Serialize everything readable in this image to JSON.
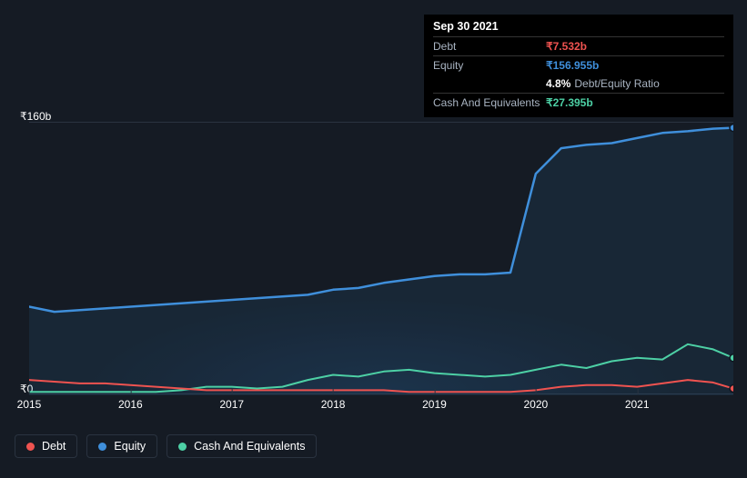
{
  "chart": {
    "type": "area-line",
    "background_color": "#151b24",
    "grid_color": "#2a3340",
    "ylim": [
      0,
      160
    ],
    "y_unit_prefix": "₹",
    "y_unit_suffix": "b",
    "y_labels": {
      "top": "₹160b",
      "bottom": "₹0"
    },
    "x_years": [
      "2015",
      "2016",
      "2017",
      "2018",
      "2019",
      "2020",
      "2021"
    ],
    "x_range": [
      2015,
      2021.95
    ],
    "series": {
      "debt": {
        "label": "Debt",
        "color": "#ef5350",
        "fill_opacity": 0.0,
        "line_width": 2,
        "points": [
          [
            2015.0,
            9
          ],
          [
            2015.25,
            8
          ],
          [
            2015.5,
            7
          ],
          [
            2015.75,
            7
          ],
          [
            2016.0,
            6
          ],
          [
            2016.25,
            5
          ],
          [
            2016.5,
            4
          ],
          [
            2016.75,
            3
          ],
          [
            2017.0,
            3
          ],
          [
            2017.25,
            3
          ],
          [
            2017.5,
            3
          ],
          [
            2017.75,
            3
          ],
          [
            2018.0,
            3
          ],
          [
            2018.25,
            3
          ],
          [
            2018.5,
            3
          ],
          [
            2018.75,
            2
          ],
          [
            2019.0,
            2
          ],
          [
            2019.25,
            2
          ],
          [
            2019.5,
            2
          ],
          [
            2019.75,
            2
          ],
          [
            2020.0,
            3
          ],
          [
            2020.25,
            5
          ],
          [
            2020.5,
            6
          ],
          [
            2020.75,
            6
          ],
          [
            2021.0,
            5
          ],
          [
            2021.25,
            7
          ],
          [
            2021.5,
            9
          ],
          [
            2021.75,
            7.5
          ],
          [
            2021.95,
            4
          ]
        ]
      },
      "equity": {
        "label": "Equity",
        "color": "#3f8fdb",
        "fill_opacity": 0.1,
        "line_width": 2.5,
        "points": [
          [
            2015.0,
            52
          ],
          [
            2015.25,
            49
          ],
          [
            2015.5,
            50
          ],
          [
            2015.75,
            51
          ],
          [
            2016.0,
            52
          ],
          [
            2016.25,
            53
          ],
          [
            2016.5,
            54
          ],
          [
            2016.75,
            55
          ],
          [
            2017.0,
            56
          ],
          [
            2017.25,
            57
          ],
          [
            2017.5,
            58
          ],
          [
            2017.75,
            59
          ],
          [
            2018.0,
            62
          ],
          [
            2018.25,
            63
          ],
          [
            2018.5,
            66
          ],
          [
            2018.75,
            68
          ],
          [
            2019.0,
            70
          ],
          [
            2019.25,
            71
          ],
          [
            2019.5,
            71
          ],
          [
            2019.75,
            72
          ],
          [
            2020.0,
            130
          ],
          [
            2020.25,
            145
          ],
          [
            2020.5,
            147
          ],
          [
            2020.75,
            148
          ],
          [
            2021.0,
            151
          ],
          [
            2021.25,
            154
          ],
          [
            2021.5,
            155
          ],
          [
            2021.75,
            156.5
          ],
          [
            2021.95,
            157
          ]
        ]
      },
      "cash": {
        "label": "Cash And Equivalents",
        "color": "#4dd0a5",
        "fill_opacity": 0.0,
        "line_width": 2,
        "points": [
          [
            2015.0,
            2
          ],
          [
            2015.25,
            2
          ],
          [
            2015.5,
            2
          ],
          [
            2015.75,
            2
          ],
          [
            2016.0,
            2
          ],
          [
            2016.25,
            2
          ],
          [
            2016.5,
            3
          ],
          [
            2016.75,
            5
          ],
          [
            2017.0,
            5
          ],
          [
            2017.25,
            4
          ],
          [
            2017.5,
            5
          ],
          [
            2017.75,
            9
          ],
          [
            2018.0,
            12
          ],
          [
            2018.25,
            11
          ],
          [
            2018.5,
            14
          ],
          [
            2018.75,
            15
          ],
          [
            2019.0,
            13
          ],
          [
            2019.25,
            12
          ],
          [
            2019.5,
            11
          ],
          [
            2019.75,
            12
          ],
          [
            2020.0,
            15
          ],
          [
            2020.25,
            18
          ],
          [
            2020.5,
            16
          ],
          [
            2020.75,
            20
          ],
          [
            2021.0,
            22
          ],
          [
            2021.25,
            21
          ],
          [
            2021.5,
            30
          ],
          [
            2021.75,
            27
          ],
          [
            2021.95,
            22
          ]
        ]
      }
    }
  },
  "tooltip": {
    "date": "Sep 30 2021",
    "rows": [
      {
        "label": "Debt",
        "value": "₹7.532b",
        "cls": "v-debt"
      },
      {
        "label": "Equity",
        "value": "₹156.955b",
        "cls": "v-equity"
      },
      {
        "label": "",
        "pct": "4.8%",
        "ratio_label": "Debt/Equity Ratio"
      },
      {
        "label": "Cash And Equivalents",
        "value": "₹27.395b",
        "cls": "v-cash"
      }
    ]
  },
  "legend": [
    {
      "key": "debt",
      "label": "Debt",
      "dot": "d-debt"
    },
    {
      "key": "equity",
      "label": "Equity",
      "dot": "d-equity"
    },
    {
      "key": "cash",
      "label": "Cash And Equivalents",
      "dot": "d-cash"
    }
  ]
}
